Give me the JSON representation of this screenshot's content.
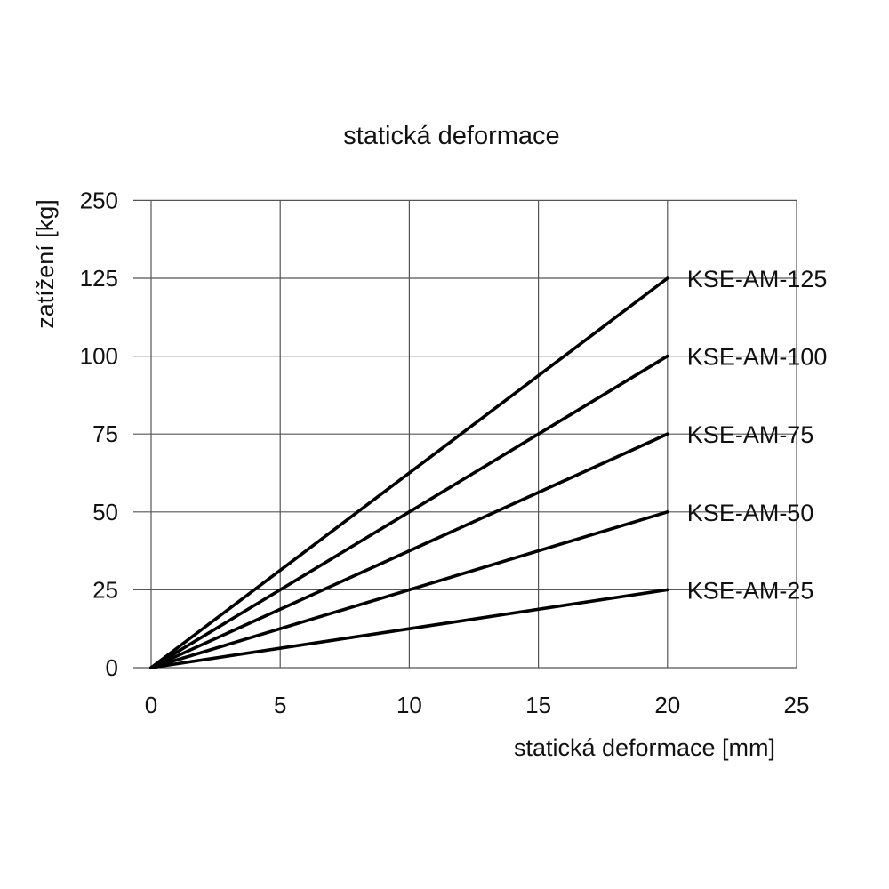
{
  "chart_data": {
    "type": "line",
    "title": "statická deformace",
    "xlabel": "statická deformace [mm]",
    "ylabel": "zatížení [kg]",
    "xlim": [
      0,
      25
    ],
    "ylim": [
      0,
      250
    ],
    "x_ticks": [
      "0",
      "5",
      "10",
      "15",
      "20",
      "25"
    ],
    "y_ticks": [
      "0",
      "25",
      "50",
      "75",
      "100",
      "125",
      "250"
    ],
    "grid": true,
    "legend": "direct labels at line ends (right)",
    "series": [
      {
        "name": "KSE-AM-125",
        "x": [
          0,
          20
        ],
        "y": [
          0,
          125
        ]
      },
      {
        "name": "KSE-AM-100",
        "x": [
          0,
          20
        ],
        "y": [
          0,
          100
        ]
      },
      {
        "name": "KSE-AM-75",
        "x": [
          0,
          20
        ],
        "y": [
          0,
          75
        ]
      },
      {
        "name": "KSE-AM-50",
        "x": [
          0,
          20
        ],
        "y": [
          0,
          50
        ]
      },
      {
        "name": "KSE-AM-25",
        "x": [
          0,
          20
        ],
        "y": [
          0,
          25
        ]
      }
    ],
    "colors": {
      "lines": "#000000",
      "grid": "#555555"
    }
  }
}
